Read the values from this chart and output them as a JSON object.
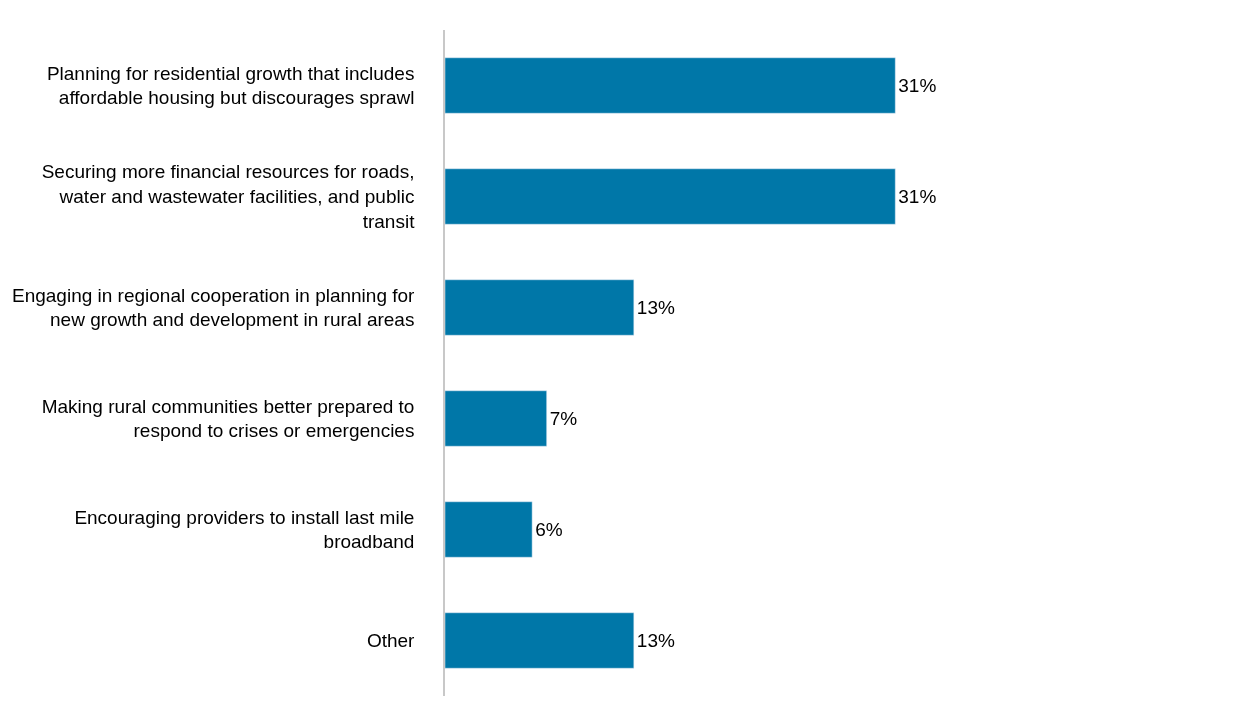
{
  "chart_data": {
    "type": "bar",
    "orientation": "horizontal",
    "categories": [
      "Planning for residential growth that includes affordable housing but discourages sprawl",
      "Securing more financial resources for roads, water and wastewater facilities, and public transit",
      "Engaging in regional cooperation in planning for new growth and development in rural areas",
      "Making rural communities better prepared to respond to crises or emergencies",
      "Encouraging providers to install last mile broadband",
      "Other"
    ],
    "values": [
      31,
      31,
      13,
      7,
      6,
      13
    ],
    "value_labels": [
      "31%",
      "31%",
      "13%",
      "7%",
      "6%",
      "13%"
    ],
    "color": "#0077a8"
  }
}
